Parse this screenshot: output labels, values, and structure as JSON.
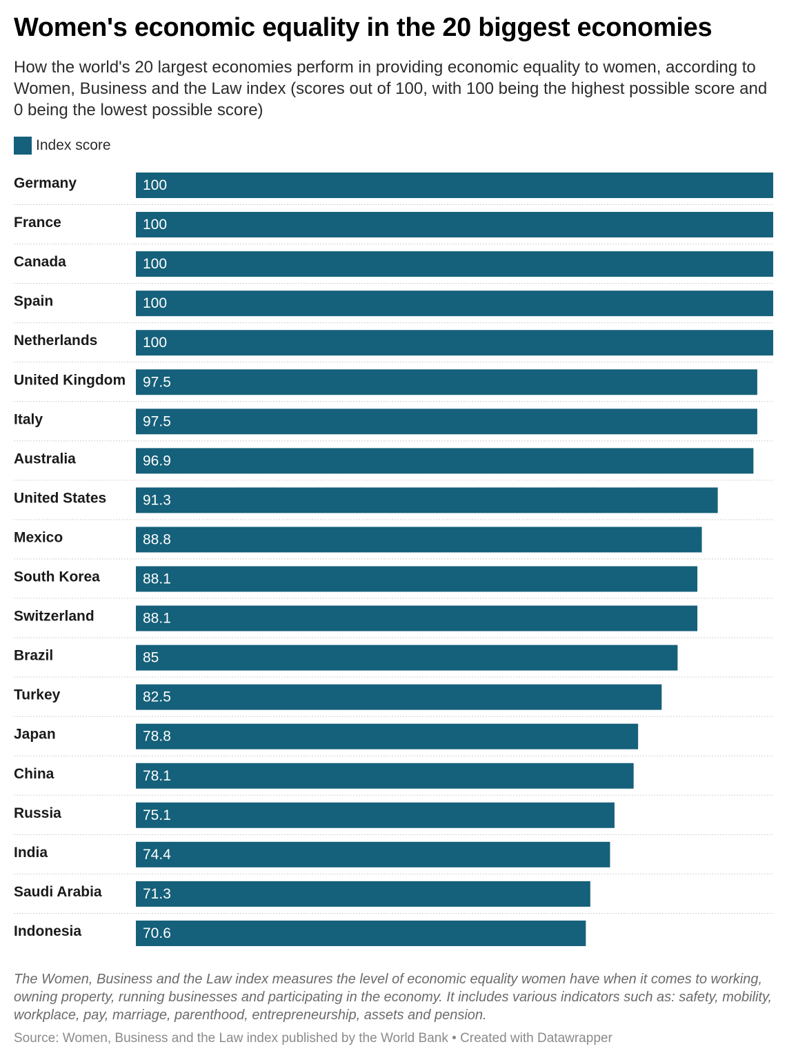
{
  "header": {
    "title": "Women's economic equality in the 20 biggest economies",
    "subtitle": "How the world's 20 largest economies perform in providing economic equality to women, according to Women, Business and the Law index (scores out of 100, with 100 being the highest possible score and 0 being the lowest possible score)"
  },
  "legend": {
    "label": "Index score",
    "color": "#15607a"
  },
  "chart_data": {
    "type": "bar",
    "orientation": "horizontal",
    "categories": [
      "Germany",
      "France",
      "Canada",
      "Spain",
      "Netherlands",
      "United Kingdom",
      "Italy",
      "Australia",
      "United States",
      "Mexico",
      "South Korea",
      "Switzerland",
      "Brazil",
      "Turkey",
      "Japan",
      "China",
      "Russia",
      "India",
      "Saudi Arabia",
      "Indonesia"
    ],
    "series": [
      {
        "name": "Index score",
        "values": [
          100,
          100,
          100,
          100,
          100,
          97.5,
          97.5,
          96.9,
          91.3,
          88.8,
          88.1,
          88.1,
          85,
          82.5,
          78.8,
          78.1,
          75.1,
          74.4,
          71.3,
          70.6
        ]
      }
    ],
    "xlim": [
      0,
      100
    ],
    "bar_color": "#15607a",
    "grid": false,
    "legend_position": "top-left"
  },
  "footer": {
    "notes": "The Women, Business and the Law index measures the level of economic equality women have when it comes to working, owning property, running businesses and participating in the economy. It includes various indicators such as: safety, mobility, workplace, pay, marriage, parenthood, entrepreneurship, assets and pension.",
    "source": "Source: Women, Business and the Law index published by the World Bank",
    "credit": "Created with Datawrapper"
  }
}
